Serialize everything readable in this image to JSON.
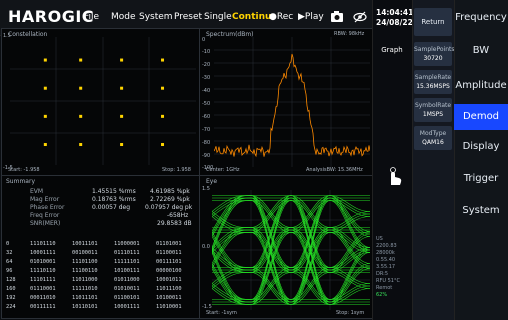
{
  "topbar": {
    "logo": "HAROGIC",
    "menu": [
      "File",
      "Mode",
      "System",
      "Preset",
      "Single"
    ],
    "continuous": "Continu.",
    "record": "●Rec",
    "play": "▶Play"
  },
  "datetime": {
    "time": "14:04:41",
    "date": "24/08/22"
  },
  "constellation": {
    "title": "Constellation",
    "y_top": "1.5",
    "y_bottom": "-1.5",
    "start": "Start: -1.958",
    "stop": "Stop: 1.958",
    "points": [
      [
        0.19,
        0.18
      ],
      [
        0.38,
        0.18
      ],
      [
        0.6,
        0.18
      ],
      [
        0.82,
        0.18
      ],
      [
        0.19,
        0.4
      ],
      [
        0.38,
        0.4
      ],
      [
        0.6,
        0.4
      ],
      [
        0.82,
        0.4
      ],
      [
        0.19,
        0.62
      ],
      [
        0.38,
        0.62
      ],
      [
        0.6,
        0.62
      ],
      [
        0.82,
        0.62
      ],
      [
        0.19,
        0.84
      ],
      [
        0.38,
        0.84
      ],
      [
        0.6,
        0.84
      ],
      [
        0.82,
        0.84
      ]
    ]
  },
  "spectrum": {
    "title": "Spectrum(dBm)",
    "rbw": "RBW: 98kHz",
    "center": "Center: 1GHz",
    "analysis_bw": "AnalysisBW: 15.36MHz",
    "y_labels": [
      "0",
      "-10",
      "-20",
      "-30",
      "-40",
      "-50",
      "-60",
      "-70",
      "-80",
      "-90",
      "-100"
    ]
  },
  "summary": {
    "title": "Summary",
    "header_col1": "EVM",
    "rows": [
      {
        "label": "EVM",
        "v1": "1.45515 %rms",
        "v2": "4.61985 %pk"
      },
      {
        "label": "Mag Error",
        "v1": "0.18763 %rms",
        "v2": "2.72269 %pk"
      },
      {
        "label": "Phase Error",
        "v1": "0.00057 deg",
        "v2": "0.07957 deg pk"
      },
      {
        "label": "Freq Error",
        "v1": "",
        "v2": "-658Hz"
      },
      {
        "label": "SNR(MER)",
        "v1": "",
        "v2": "29.8583 dB"
      }
    ],
    "hex": [
      {
        "idx": "0",
        "a": "11101110",
        "b": "10011101",
        "c": "11000001",
        "d": "01101001"
      },
      {
        "idx": "32",
        "a": "10001111",
        "b": "00100011",
        "c": "01110111",
        "d": "01100011"
      },
      {
        "idx": "64",
        "a": "01010001",
        "b": "11101100",
        "c": "11111101",
        "d": "00111101"
      },
      {
        "idx": "96",
        "a": "11110110",
        "b": "11100110",
        "c": "10100111",
        "d": "00000100"
      },
      {
        "idx": "128",
        "a": "11101111",
        "b": "11011000",
        "c": "01011000",
        "d": "10001011"
      },
      {
        "idx": "160",
        "a": "01110001",
        "b": "11111010",
        "c": "01010011",
        "d": "11011100"
      },
      {
        "idx": "192",
        "a": "00011010",
        "b": "11011101",
        "c": "01100101",
        "d": "10100011"
      },
      {
        "idx": "224",
        "a": "00111111",
        "b": "10110101",
        "c": "10001111",
        "d": "11010001"
      }
    ]
  },
  "eye": {
    "title": "Eye",
    "y_top": "1.5",
    "y_mid": "0.0",
    "y_bottom": "-1.5",
    "start": "Start: -1sym",
    "stop": "Stop: 1sym"
  },
  "panel": {
    "graph": "Graph",
    "tab": "Return",
    "sample_points_label": "SamplePoints",
    "sample_points_value": "30720",
    "sample_rate_label": "SampleRate",
    "sample_rate_value": "15.36MSPS",
    "symbol_rate_label": "SymbolRate",
    "symbol_rate_value": "1MSPS",
    "modtype_label": "ModType",
    "modtype_value": "QAM16"
  },
  "nav": [
    "Frequency",
    "BW",
    "Amplitude",
    "Demod",
    "Display",
    "Trigger",
    "System"
  ],
  "status": [
    "US",
    "2200.83",
    "28000k",
    "0.55.40",
    "3.55.17",
    "DR:5",
    "RFU 51°C",
    "Remot",
    "62%"
  ]
}
